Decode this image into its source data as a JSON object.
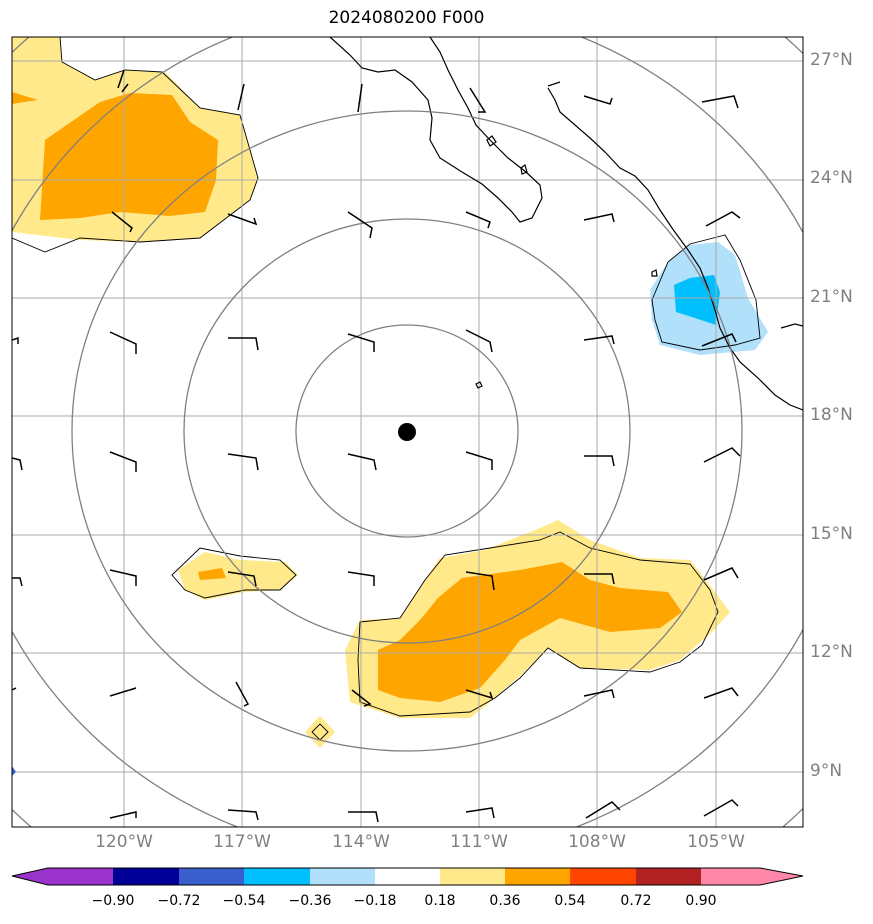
{
  "title": "2024080200 F000",
  "latitude_labels": [
    "27°N",
    "24°N",
    "21°N",
    "18°N",
    "15°N",
    "12°N",
    "9°N"
  ],
  "longitude_labels": [
    "120°W",
    "117°W",
    "114°W",
    "111°W",
    "108°W",
    "105°W"
  ],
  "colorbar": {
    "tick_labels": [
      "−0.90",
      "−0.72",
      "−0.54",
      "−0.36",
      "−0.18",
      "0.18",
      "0.36",
      "0.54",
      "0.72",
      "0.90"
    ],
    "colors": [
      "#9933cc",
      "#000099",
      "#3a5fcd",
      "#00bfff",
      "#b0e0fa",
      "#ffffff",
      "#ffe98a",
      "#ffa500",
      "#ff4500",
      "#b22222",
      "#ff88aa"
    ]
  },
  "map": {
    "shading_colors": {
      "light_yellow": "#ffe98a",
      "orange": "#ffa500",
      "light_blue": "#b0e0fa",
      "blue": "#00bfff"
    },
    "storm_center_marker": "filled-circle"
  }
}
